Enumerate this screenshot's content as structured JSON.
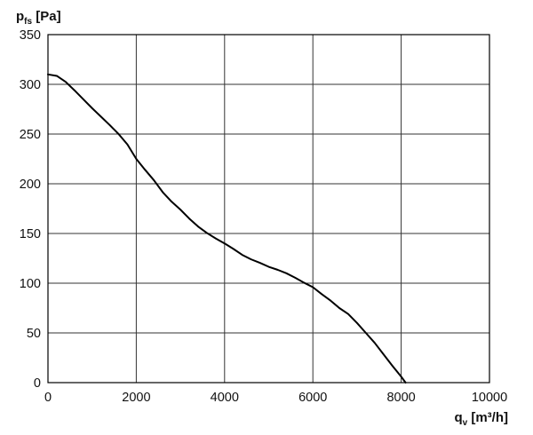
{
  "chart_data": {
    "type": "line",
    "title": "",
    "ylabel": {
      "main": "p",
      "sub": "fs",
      "unit": " [Pa]"
    },
    "xlabel": {
      "main": "q",
      "sub": "v",
      "unit": " [m³/h]"
    },
    "xlim": [
      0,
      10000
    ],
    "ylim": [
      0,
      350
    ],
    "xticks": [
      "0",
      "2000",
      "4000",
      "6000",
      "8000",
      "10000"
    ],
    "yticks": [
      "0",
      "50",
      "100",
      "150",
      "200",
      "250",
      "300",
      "350"
    ],
    "grid": true,
    "series": [
      {
        "x": [
          0,
          200,
          400,
          600,
          800,
          1000,
          1200,
          1400,
          1600,
          1800,
          2000,
          2200,
          2400,
          2600,
          2800,
          3000,
          3200,
          3400,
          3600,
          3800,
          4000,
          4200,
          4400,
          4600,
          4800,
          5000,
          5200,
          5400,
          5600,
          5800,
          6000,
          6200,
          6400,
          6600,
          6800,
          7000,
          7200,
          7400,
          7600,
          7800,
          8000,
          8100
        ],
        "y": [
          310,
          308.5,
          302.5,
          294,
          285,
          276,
          267.5,
          259,
          250,
          239.5,
          225,
          214,
          203.5,
          191.5,
          182,
          174,
          165,
          157,
          150.5,
          145,
          140,
          134.5,
          128.5,
          124,
          120.5,
          116.5,
          113.5,
          110,
          105.5,
          100.5,
          96,
          89,
          82.5,
          75,
          69,
          60,
          50,
          40,
          28.5,
          17,
          6,
          0
        ]
      }
    ],
    "color": "#000000"
  }
}
